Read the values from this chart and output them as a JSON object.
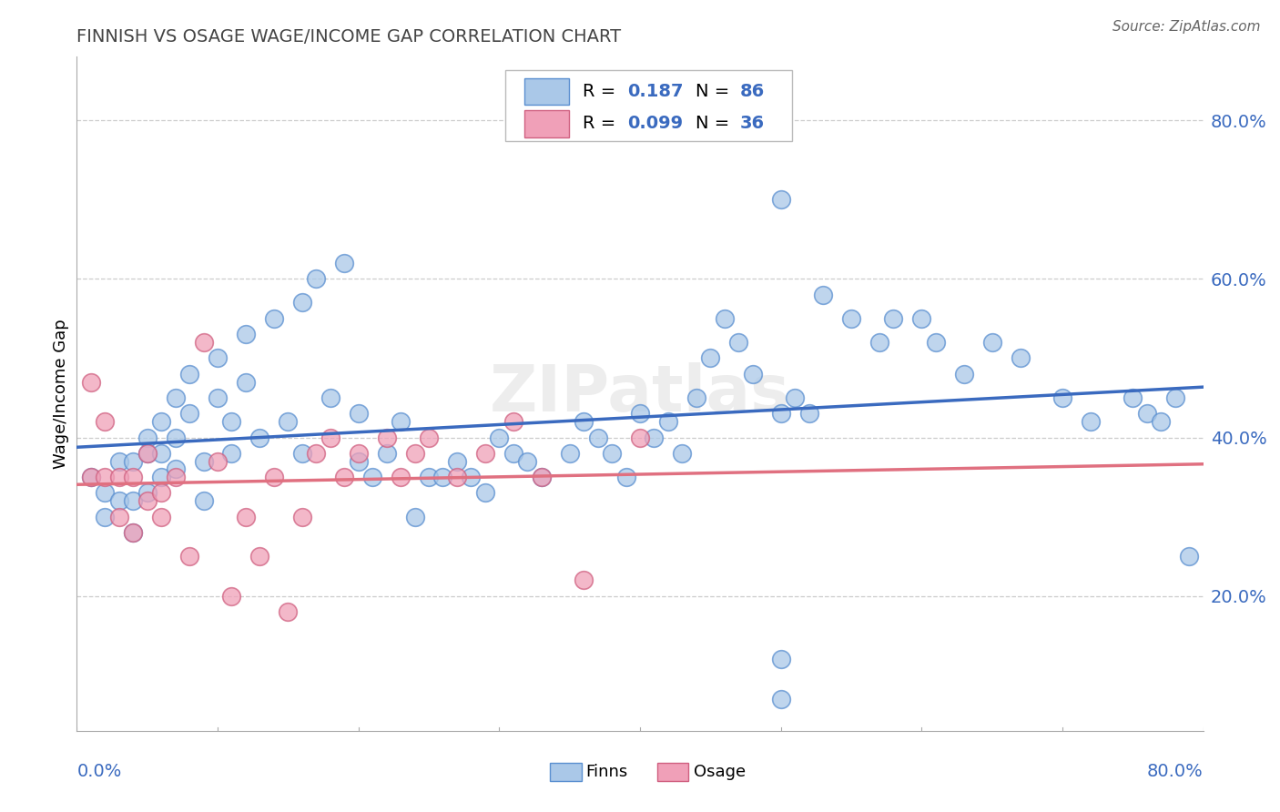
{
  "title": "FINNISH VS OSAGE WAGE/INCOME GAP CORRELATION CHART",
  "source": "Source: ZipAtlas.com",
  "ylabel": "Wage/Income Gap",
  "finns_R": 0.187,
  "finns_N": 86,
  "osage_R": 0.099,
  "osage_N": 36,
  "finns_color": "#aac8e8",
  "osage_color": "#f0a0b8",
  "finns_line_color": "#3a6abf",
  "osage_line_color": "#e07080",
  "finns_edge_color": "#5a8fd0",
  "osage_edge_color": "#d06080",
  "watermark_text": "ZIPatlas",
  "xmin": 0.0,
  "xmax": 0.8,
  "ymin": 0.03,
  "ymax": 0.88,
  "yticks": [
    0.2,
    0.4,
    0.6,
    0.8
  ],
  "ytick_labels": [
    "20.0%",
    "40.0%",
    "60.0%",
    "80.0%"
  ],
  "grid_color": "#cccccc",
  "title_color": "#444444",
  "source_color": "#666666",
  "legend_edge_color": "#bbbbbb",
  "finns_scatter_x": [
    0.01,
    0.02,
    0.02,
    0.03,
    0.03,
    0.04,
    0.04,
    0.04,
    0.05,
    0.05,
    0.05,
    0.06,
    0.06,
    0.06,
    0.07,
    0.07,
    0.07,
    0.08,
    0.08,
    0.09,
    0.09,
    0.1,
    0.1,
    0.11,
    0.11,
    0.12,
    0.12,
    0.13,
    0.14,
    0.15,
    0.16,
    0.16,
    0.17,
    0.18,
    0.19,
    0.2,
    0.2,
    0.21,
    0.22,
    0.23,
    0.24,
    0.25,
    0.26,
    0.27,
    0.28,
    0.29,
    0.3,
    0.31,
    0.32,
    0.33,
    0.35,
    0.36,
    0.37,
    0.38,
    0.39,
    0.4,
    0.41,
    0.42,
    0.43,
    0.44,
    0.45,
    0.46,
    0.47,
    0.48,
    0.5,
    0.5,
    0.51,
    0.52,
    0.53,
    0.55,
    0.57,
    0.58,
    0.6,
    0.61,
    0.63,
    0.65,
    0.67,
    0.7,
    0.72,
    0.75,
    0.76,
    0.77,
    0.78,
    0.79,
    0.5,
    0.5
  ],
  "finns_scatter_y": [
    0.35,
    0.33,
    0.3,
    0.37,
    0.32,
    0.37,
    0.32,
    0.28,
    0.4,
    0.38,
    0.33,
    0.42,
    0.38,
    0.35,
    0.45,
    0.4,
    0.36,
    0.48,
    0.43,
    0.37,
    0.32,
    0.5,
    0.45,
    0.42,
    0.38,
    0.53,
    0.47,
    0.4,
    0.55,
    0.42,
    0.57,
    0.38,
    0.6,
    0.45,
    0.62,
    0.37,
    0.43,
    0.35,
    0.38,
    0.42,
    0.3,
    0.35,
    0.35,
    0.37,
    0.35,
    0.33,
    0.4,
    0.38,
    0.37,
    0.35,
    0.38,
    0.42,
    0.4,
    0.38,
    0.35,
    0.43,
    0.4,
    0.42,
    0.38,
    0.45,
    0.5,
    0.55,
    0.52,
    0.48,
    0.7,
    0.43,
    0.45,
    0.43,
    0.58,
    0.55,
    0.52,
    0.55,
    0.55,
    0.52,
    0.48,
    0.52,
    0.5,
    0.45,
    0.42,
    0.45,
    0.43,
    0.42,
    0.45,
    0.25,
    0.12,
    0.07
  ],
  "osage_scatter_x": [
    0.01,
    0.01,
    0.02,
    0.02,
    0.03,
    0.03,
    0.04,
    0.04,
    0.05,
    0.05,
    0.06,
    0.06,
    0.07,
    0.08,
    0.09,
    0.1,
    0.11,
    0.12,
    0.13,
    0.14,
    0.15,
    0.16,
    0.17,
    0.18,
    0.19,
    0.2,
    0.22,
    0.23,
    0.24,
    0.25,
    0.27,
    0.29,
    0.31,
    0.33,
    0.36,
    0.4
  ],
  "osage_scatter_y": [
    0.47,
    0.35,
    0.42,
    0.35,
    0.3,
    0.35,
    0.28,
    0.35,
    0.38,
    0.32,
    0.33,
    0.3,
    0.35,
    0.25,
    0.52,
    0.37,
    0.2,
    0.3,
    0.25,
    0.35,
    0.18,
    0.3,
    0.38,
    0.4,
    0.35,
    0.38,
    0.4,
    0.35,
    0.38,
    0.4,
    0.35,
    0.38,
    0.42,
    0.35,
    0.22,
    0.4
  ]
}
